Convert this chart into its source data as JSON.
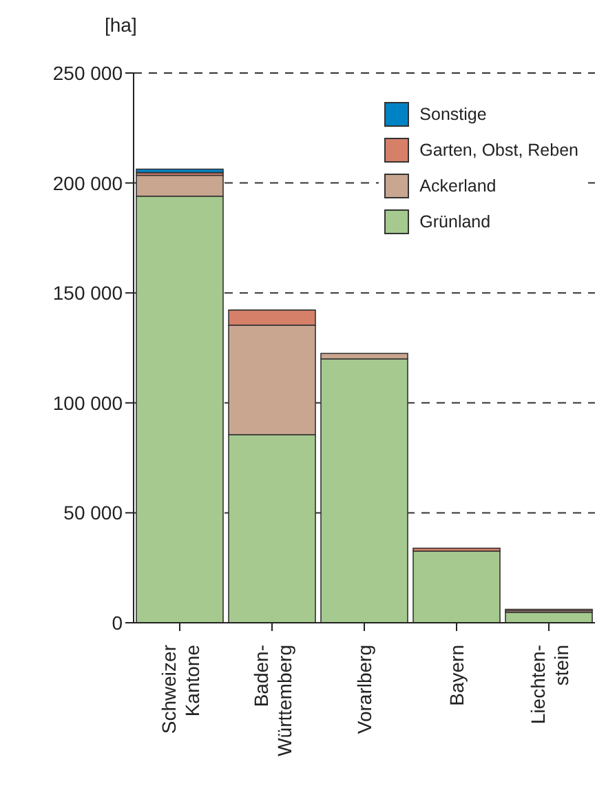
{
  "chart_data": {
    "type": "bar",
    "stacked": true,
    "ylabel": "[ha]",
    "categories": [
      "Schweizer Kantone",
      "Baden-Württemberg",
      "Vorarlberg",
      "Bayern",
      "Liechten-stein"
    ],
    "series": [
      {
        "name": "Grünland",
        "color": "#a5c98f",
        "values": [
          194000,
          85500,
          120000,
          32600,
          4700
        ]
      },
      {
        "name": "Ackerland",
        "color": "#c8a690",
        "values": [
          9500,
          49800,
          2500,
          null,
          800
        ]
      },
      {
        "name": "Garten, Obst, Reben",
        "color": "#d6806a",
        "values": [
          1200,
          6900,
          null,
          1300,
          600
        ]
      },
      {
        "name": "Sonstige",
        "color": "#0083c4",
        "values": [
          1600,
          null,
          null,
          null,
          null
        ]
      }
    ],
    "ylim": [
      0,
      250000
    ],
    "yticks": [
      {
        "value": 0,
        "label": "0"
      },
      {
        "value": 50000,
        "label": "50 000"
      },
      {
        "value": 100000,
        "label": "100 000"
      },
      {
        "value": 150000,
        "label": "150 000"
      },
      {
        "value": 200000,
        "label": "200 000"
      },
      {
        "value": 250000,
        "label": "250 000"
      }
    ],
    "grid": "y",
    "legend": "top right"
  }
}
